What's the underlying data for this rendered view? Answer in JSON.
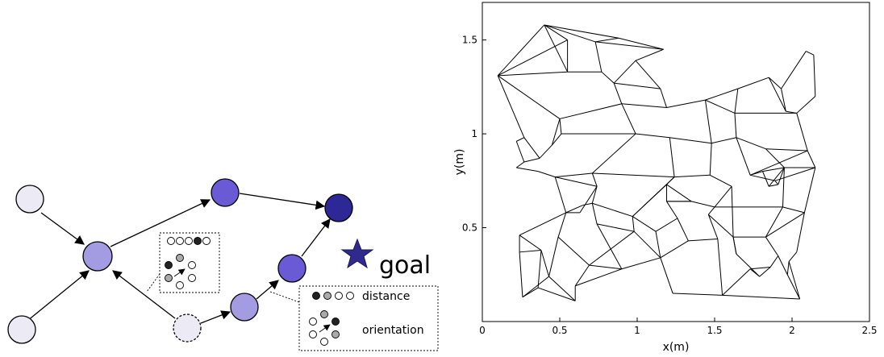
{
  "diagram": {
    "goal_label": "goal",
    "legend_distance": "distance",
    "legend_orientation": "orientation",
    "colors": {
      "pale": "#ebeaf5",
      "light": "#a39ce3",
      "medium": "#6a5ad6",
      "dark": "#2e2796",
      "star": "#2f2a8c"
    }
  },
  "plot": {
    "xlabel": "x(m)",
    "ylabel": "y(m)",
    "xticks": [
      "0",
      "0.5",
      "1",
      "1.5",
      "2",
      "2.5"
    ],
    "yticks": [
      "0.5",
      "1",
      "1.5"
    ]
  },
  "chart_data": {
    "type": "scatter",
    "xlabel": "x(m)",
    "ylabel": "y(m)",
    "xlim": [
      0,
      2.5
    ],
    "ylim": [
      0,
      1.7
    ],
    "points": [
      [
        0.1,
        1.31
      ],
      [
        0.4,
        1.58
      ],
      [
        0.73,
        1.49
      ],
      [
        0.88,
        1.51
      ],
      [
        1.17,
        1.45
      ],
      [
        0.55,
        1.5
      ],
      [
        0.55,
        1.33
      ],
      [
        0.77,
        1.33
      ],
      [
        0.99,
        1.39
      ],
      [
        0.85,
        1.27
      ],
      [
        1.15,
        1.24
      ],
      [
        1.19,
        1.14
      ],
      [
        1.44,
        1.18
      ],
      [
        0.9,
        1.16
      ],
      [
        1.63,
        1.11
      ],
      [
        1.65,
        1.24
      ],
      [
        1.85,
        1.3
      ],
      [
        1.93,
        1.24
      ],
      [
        2.09,
        1.44
      ],
      [
        2.14,
        1.42
      ],
      [
        2.15,
        1.2
      ],
      [
        2.03,
        1.11
      ],
      [
        1.96,
        1.12
      ],
      [
        1.64,
        0.98
      ],
      [
        1.48,
        0.95
      ],
      [
        1.21,
        0.98
      ],
      [
        0.99,
        1.0
      ],
      [
        0.5,
        1.08
      ],
      [
        0.27,
        0.98
      ],
      [
        0.45,
        0.94
      ],
      [
        0.37,
        0.87
      ],
      [
        0.27,
        0.85
      ],
      [
        0.51,
        1.0
      ],
      [
        0.22,
        0.96
      ],
      [
        1.83,
        0.92
      ],
      [
        2.1,
        0.91
      ],
      [
        1.95,
        0.82
      ],
      [
        2.15,
        0.82
      ],
      [
        1.81,
        0.8
      ],
      [
        1.73,
        0.78
      ],
      [
        1.89,
        0.75
      ],
      [
        1.91,
        0.73
      ],
      [
        1.85,
        0.72
      ],
      [
        1.47,
        0.78
      ],
      [
        1.24,
        0.77
      ],
      [
        0.71,
        0.79
      ],
      [
        0.47,
        0.77
      ],
      [
        0.36,
        0.8
      ],
      [
        0.22,
        0.82
      ],
      [
        0.74,
        0.72
      ],
      [
        0.71,
        0.63
      ],
      [
        0.65,
        0.62
      ],
      [
        0.54,
        0.58
      ],
      [
        0.63,
        0.58
      ],
      [
        0.97,
        0.56
      ],
      [
        1.19,
        0.73
      ],
      [
        1.35,
        0.64
      ],
      [
        1.5,
        0.61
      ],
      [
        1.61,
        0.72
      ],
      [
        1.94,
        0.61
      ],
      [
        2.08,
        0.58
      ],
      [
        1.83,
        0.45
      ],
      [
        1.62,
        0.45
      ],
      [
        1.46,
        0.57
      ],
      [
        1.19,
        0.64
      ],
      [
        1.26,
        0.55
      ],
      [
        1.12,
        0.48
      ],
      [
        1.15,
        0.34
      ],
      [
        1.33,
        0.43
      ],
      [
        1.52,
        0.44
      ],
      [
        1.55,
        0.14
      ],
      [
        1.73,
        0.28
      ],
      [
        1.86,
        0.29
      ],
      [
        1.91,
        0.35
      ],
      [
        1.97,
        0.25
      ],
      [
        1.98,
        0.32
      ],
      [
        2.03,
        0.37
      ],
      [
        2.05,
        0.12
      ],
      [
        1.79,
        0.24
      ],
      [
        1.64,
        0.36
      ],
      [
        1.23,
        0.15
      ],
      [
        0.98,
        0.48
      ],
      [
        0.74,
        0.52
      ],
      [
        0.9,
        0.28
      ],
      [
        0.69,
        0.3
      ],
      [
        0.6,
        0.19
      ],
      [
        0.6,
        0.11
      ],
      [
        0.36,
        0.18
      ],
      [
        0.26,
        0.13
      ],
      [
        0.24,
        0.37
      ],
      [
        0.24,
        0.46
      ],
      [
        0.38,
        0.38
      ],
      [
        0.43,
        0.24
      ],
      [
        0.49,
        0.45
      ]
    ],
    "edges": [
      [
        0,
        1
      ],
      [
        0,
        5
      ],
      [
        0,
        6
      ],
      [
        0,
        27
      ],
      [
        0,
        28
      ],
      [
        1,
        2
      ],
      [
        1,
        5
      ],
      [
        1,
        3
      ],
      [
        1,
        6
      ],
      [
        2,
        3
      ],
      [
        2,
        4
      ],
      [
        3,
        4
      ],
      [
        4,
        8
      ],
      [
        2,
        7
      ],
      [
        5,
        6
      ],
      [
        6,
        7
      ],
      [
        7,
        9
      ],
      [
        8,
        9
      ],
      [
        9,
        10
      ],
      [
        8,
        10
      ],
      [
        10,
        11
      ],
      [
        11,
        13
      ],
      [
        9,
        13
      ],
      [
        12,
        11
      ],
      [
        12,
        14
      ],
      [
        12,
        15
      ],
      [
        14,
        15
      ],
      [
        15,
        16
      ],
      [
        16,
        17
      ],
      [
        17,
        18
      ],
      [
        18,
        19
      ],
      [
        19,
        20
      ],
      [
        20,
        21
      ],
      [
        21,
        22
      ],
      [
        17,
        22
      ],
      [
        16,
        22
      ],
      [
        14,
        21
      ],
      [
        14,
        23
      ],
      [
        12,
        24
      ],
      [
        23,
        24
      ],
      [
        24,
        25
      ],
      [
        25,
        26
      ],
      [
        26,
        13
      ],
      [
        13,
        27
      ],
      [
        27,
        32
      ],
      [
        32,
        26
      ],
      [
        27,
        29
      ],
      [
        28,
        33
      ],
      [
        28,
        30
      ],
      [
        29,
        30
      ],
      [
        30,
        31
      ],
      [
        31,
        33
      ],
      [
        29,
        32
      ],
      [
        23,
        34
      ],
      [
        34,
        35
      ],
      [
        35,
        21
      ],
      [
        34,
        36
      ],
      [
        36,
        37
      ],
      [
        37,
        35
      ],
      [
        36,
        38
      ],
      [
        38,
        39
      ],
      [
        39,
        40
      ],
      [
        40,
        41
      ],
      [
        41,
        42
      ],
      [
        42,
        38
      ],
      [
        23,
        39
      ],
      [
        24,
        43
      ],
      [
        43,
        44
      ],
      [
        44,
        25
      ],
      [
        44,
        45
      ],
      [
        45,
        46
      ],
      [
        46,
        47
      ],
      [
        47,
        48
      ],
      [
        48,
        31
      ],
      [
        45,
        49
      ],
      [
        49,
        50
      ],
      [
        50,
        51
      ],
      [
        51,
        52
      ],
      [
        52,
        53
      ],
      [
        53,
        49
      ],
      [
        45,
        26
      ],
      [
        46,
        49
      ],
      [
        46,
        52
      ],
      [
        54,
        44
      ],
      [
        54,
        55
      ],
      [
        55,
        44
      ],
      [
        55,
        56
      ],
      [
        56,
        57
      ],
      [
        57,
        58
      ],
      [
        58,
        43
      ],
      [
        57,
        59
      ],
      [
        59,
        60
      ],
      [
        60,
        37
      ],
      [
        59,
        36
      ],
      [
        59,
        61
      ],
      [
        61,
        62
      ],
      [
        62,
        63
      ],
      [
        63,
        57
      ],
      [
        56,
        64
      ],
      [
        64,
        65
      ],
      [
        65,
        66
      ],
      [
        66,
        54
      ],
      [
        66,
        67
      ],
      [
        67,
        68
      ],
      [
        68,
        69
      ],
      [
        69,
        63
      ],
      [
        69,
        70
      ],
      [
        70,
        71
      ],
      [
        71,
        72
      ],
      [
        72,
        73
      ],
      [
        73,
        74
      ],
      [
        74,
        75
      ],
      [
        75,
        76
      ],
      [
        76,
        60
      ],
      [
        74,
        77
      ],
      [
        77,
        70
      ],
      [
        71,
        78
      ],
      [
        78,
        79
      ],
      [
        79,
        62
      ],
      [
        70,
        80
      ],
      [
        80,
        67
      ],
      [
        67,
        81
      ],
      [
        81,
        54
      ],
      [
        81,
        82
      ],
      [
        82,
        83
      ],
      [
        83,
        84
      ],
      [
        84,
        85
      ],
      [
        85,
        86
      ],
      [
        86,
        87
      ],
      [
        87,
        88
      ],
      [
        88,
        89
      ],
      [
        89,
        90
      ],
      [
        90,
        91
      ],
      [
        91,
        92
      ],
      [
        92,
        93
      ],
      [
        93,
        84
      ],
      [
        93,
        52
      ],
      [
        90,
        52
      ],
      [
        87,
        91
      ],
      [
        89,
        91
      ],
      [
        88,
        92
      ],
      [
        86,
        92
      ],
      [
        83,
        85
      ],
      [
        84,
        81
      ],
      [
        82,
        50
      ],
      [
        83,
        67
      ],
      [
        54,
        50
      ],
      [
        65,
        68
      ],
      [
        64,
        56
      ],
      [
        61,
        73
      ],
      [
        62,
        79
      ],
      [
        72,
        78
      ],
      [
        75,
        77
      ],
      [
        60,
        61
      ],
      [
        58,
        62
      ],
      [
        55,
        64
      ],
      [
        40,
        37
      ],
      [
        42,
        36
      ],
      [
        41,
        36
      ],
      [
        39,
        35
      ]
    ]
  }
}
